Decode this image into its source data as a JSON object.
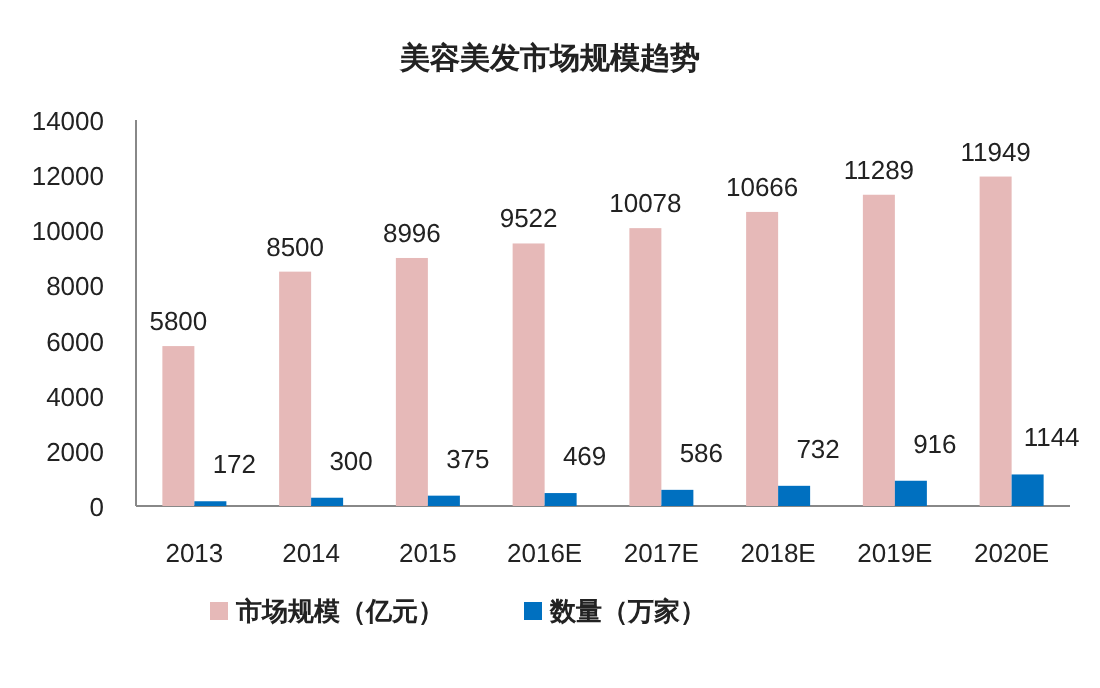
{
  "chart_data": {
    "type": "bar",
    "title": "美容美发市场规模趋势",
    "categories": [
      "2013",
      "2014",
      "2015",
      "2016E",
      "2017E",
      "2018E",
      "2019E",
      "2020E"
    ],
    "series": [
      {
        "name": "市场规模（亿元）",
        "color": "#e6b9b8",
        "values": [
          5800,
          8500,
          8996,
          9522,
          10078,
          10666,
          11289,
          11949
        ]
      },
      {
        "name": "数量（万家）",
        "color": "#0070c0",
        "values": [
          172,
          300,
          375,
          469,
          586,
          732,
          916,
          1144
        ]
      }
    ],
    "ylim": [
      0,
      14000
    ],
    "yticks": [
      0,
      2000,
      4000,
      6000,
      8000,
      10000,
      12000,
      14000
    ],
    "data_labels": true,
    "legend": "bottom",
    "grid": false
  }
}
